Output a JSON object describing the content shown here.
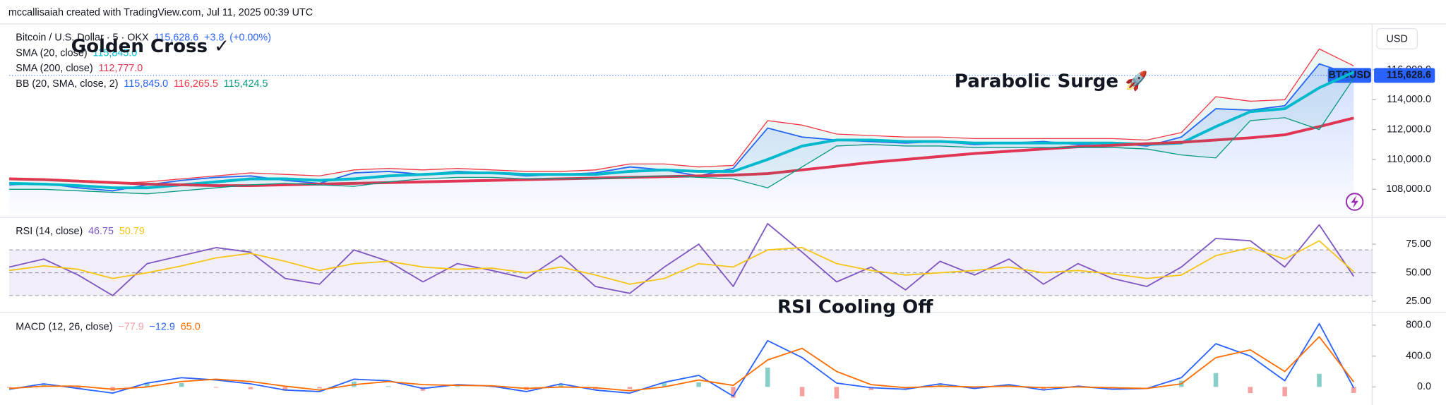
{
  "header": "mccallisaiah created with TradingView.com, Jul 11, 2025 00:39 UTC",
  "chart_data": [
    {
      "type": "line",
      "currency": "USD",
      "symbol": "BTCUSD",
      "ylim": [
        106300,
        118950
      ],
      "yticks": [
        {
          "value": 108000,
          "label": "108,000.0"
        },
        {
          "value": 110000,
          "label": "110,000.0"
        },
        {
          "value": 112000,
          "label": "112,000.0"
        },
        {
          "value": 114000,
          "label": "114,000.0"
        },
        {
          "value": 116000,
          "label": "116,000.0"
        }
      ],
      "grid": false,
      "series": [
        {
          "name": "Bitcoin / U.S. Dollar · 5 · OKX",
          "color": "#2962ff",
          "area": true,
          "last_price_line": true,
          "values": [
            108300,
            108400,
            108100,
            107900,
            108300,
            108600,
            108800,
            108900,
            108600,
            108400,
            109100,
            109200,
            109000,
            109200,
            109100,
            108900,
            109000,
            109100,
            109500,
            109300,
            108900,
            109400,
            112100,
            111500,
            111300,
            111200,
            111100,
            111200,
            111000,
            111100,
            111200,
            111000,
            111100,
            110900,
            111500,
            113400,
            113300,
            113600,
            116400,
            115628.6
          ],
          "legend": [
            {
              "value": 115628.6,
              "label": "115,628.6"
            },
            {
              "value": 3.8,
              "label": "+3.8"
            },
            {
              "value": 0.0,
              "label": "(+0.00%)"
            }
          ]
        },
        {
          "name": "SMA (20, close)",
          "color": "#00bcd4",
          "width": 3,
          "values": [
            108400,
            108350,
            108250,
            108100,
            108100,
            108300,
            108500,
            108700,
            108700,
            108600,
            108700,
            108900,
            109000,
            109100,
            109100,
            109000,
            109000,
            109000,
            109200,
            109300,
            109200,
            109200,
            110000,
            110900,
            111300,
            111300,
            111200,
            111200,
            111100,
            111100,
            111100,
            111100,
            111100,
            111000,
            111100,
            112200,
            113200,
            113400,
            114800,
            115845
          ],
          "legend": [
            {
              "value": 115845.0,
              "label": "115,845.0"
            }
          ]
        },
        {
          "name": "SMA (200, close)",
          "color": "#e03553",
          "width": 3,
          "values": [
            108700,
            108650,
            108550,
            108450,
            108350,
            108300,
            108250,
            108250,
            108300,
            108350,
            108400,
            108450,
            108500,
            108550,
            108600,
            108650,
            108700,
            108750,
            108800,
            108850,
            108900,
            108950,
            109050,
            109300,
            109550,
            109800,
            110000,
            110200,
            110400,
            110550,
            110700,
            110850,
            110950,
            111050,
            111150,
            111300,
            111450,
            111650,
            112200,
            112777
          ],
          "legend": [
            {
              "value": 112777.0,
              "label": "112,777.0"
            }
          ]
        },
        {
          "name": "BB (20, SMA, close, 2)",
          "color": "#2962ff",
          "upper_color": "#f23645",
          "lower_color": "#089981",
          "upper": [
            108700,
            108700,
            108600,
            108400,
            108500,
            108700,
            108900,
            109100,
            109000,
            108900,
            109300,
            109400,
            109300,
            109400,
            109300,
            109200,
            109200,
            109300,
            109700,
            109700,
            109500,
            109600,
            112600,
            112300,
            111700,
            111600,
            111500,
            111500,
            111400,
            111400,
            111400,
            111400,
            111400,
            111300,
            111800,
            114200,
            113900,
            114000,
            117400,
            116265.5
          ],
          "lower": [
            108000,
            108000,
            107900,
            107800,
            107700,
            107900,
            108100,
            108300,
            108400,
            108300,
            108200,
            108500,
            108700,
            108800,
            108800,
            108700,
            108700,
            108700,
            108800,
            108900,
            108800,
            108700,
            108100,
            109500,
            110900,
            111000,
            110900,
            110900,
            110800,
            110800,
            110800,
            110800,
            110800,
            110700,
            110300,
            110100,
            112600,
            112800,
            112000,
            115424.5
          ],
          "legend": [
            {
              "value": 115845.0,
              "label": "115,845.0",
              "color": "#2962ff"
            },
            {
              "value": 116265.5,
              "label": "116,265.5",
              "color": "#f23645"
            },
            {
              "value": 115424.5,
              "label": "115,424.5",
              "color": "#089981"
            }
          ]
        }
      ],
      "annotations": [
        {
          "text": "Golden Cross ✓",
          "color": "#e01b1b"
        },
        {
          "text": "Parabolic Surge 🚀",
          "color": "#1a1ad8"
        }
      ]
    },
    {
      "type": "line",
      "title": "RSI (14, close)",
      "ylim": [
        18.5,
        96.8
      ],
      "yticks": [
        {
          "value": 25,
          "label": "25.00"
        },
        {
          "value": 50,
          "label": "50.00"
        },
        {
          "value": 75,
          "label": "75.00"
        }
      ],
      "bands": [
        70,
        50,
        30
      ],
      "series": [
        {
          "color": "#7e57c2",
          "values": [
            55,
            62,
            48,
            30,
            58,
            65,
            72,
            68,
            45,
            40,
            70,
            60,
            42,
            58,
            52,
            45,
            65,
            38,
            32,
            55,
            75,
            38,
            93,
            68,
            42,
            55,
            35,
            60,
            48,
            62,
            40,
            58,
            45,
            38,
            55,
            80,
            78,
            55,
            92,
            46.75
          ],
          "legend": [
            {
              "value": 46.75,
              "label": "46.75"
            }
          ]
        },
        {
          "color": "#f5c518",
          "values": [
            52,
            56,
            53,
            45,
            50,
            56,
            63,
            67,
            60,
            52,
            58,
            60,
            55,
            53,
            54,
            50,
            55,
            48,
            40,
            45,
            58,
            55,
            70,
            72,
            58,
            52,
            48,
            50,
            52,
            55,
            50,
            52,
            49,
            45,
            48,
            65,
            72,
            62,
            78,
            50.79
          ],
          "legend": [
            {
              "value": 50.79,
              "label": "50.79"
            }
          ]
        }
      ],
      "annotations": [
        {
          "text": "RSI Cooling Off",
          "color": "#8b1a8b"
        }
      ]
    },
    {
      "type": "line",
      "title": "MACD (12, 26, close)",
      "ylim": [
        -240,
        930
      ],
      "yticks": [
        {
          "value": 0,
          "label": "0.0"
        },
        {
          "value": 400,
          "label": "400.0"
        },
        {
          "value": 800,
          "label": "800.0"
        }
      ],
      "series": [
        {
          "style": "histogram",
          "color": "#26a69a",
          "negative_color": "#ef5350",
          "values": [
            -10,
            30,
            -30,
            -50,
            50,
            50,
            -10,
            -30,
            -50,
            -20,
            70,
            10,
            -50,
            10,
            -5,
            -40,
            40,
            -30,
            -30,
            60,
            60,
            -140,
            250,
            -120,
            -150,
            -40,
            -20,
            30,
            -20,
            20,
            -30,
            10,
            -20,
            0,
            80,
            180,
            -80,
            -120,
            170,
            -77.9
          ],
          "legend": [
            {
              "value": -77.9,
              "label": "−77.9",
              "color": "#f7a1a8"
            }
          ]
        },
        {
          "color": "#2962ff",
          "values": [
            -30,
            40,
            -20,
            -80,
            50,
            120,
            90,
            40,
            -40,
            -60,
            100,
            80,
            -20,
            30,
            10,
            -60,
            40,
            -40,
            -80,
            60,
            150,
            -120,
            600,
            380,
            50,
            -10,
            -30,
            40,
            -20,
            30,
            -40,
            10,
            -30,
            -20,
            120,
            560,
            400,
            80,
            820,
            -12.9
          ],
          "legend": [
            {
              "value": -12.9,
              "label": "−12.9"
            }
          ]
        },
        {
          "color": "#ff6d00",
          "values": [
            -20,
            10,
            10,
            -30,
            0,
            70,
            100,
            70,
            10,
            -40,
            30,
            70,
            30,
            20,
            15,
            -20,
            0,
            -10,
            -50,
            0,
            90,
            20,
            350,
            500,
            200,
            30,
            -10,
            10,
            0,
            10,
            -10,
            0,
            -10,
            -20,
            40,
            380,
            480,
            200,
            650,
            65.0
          ],
          "legend": [
            {
              "value": 65.0,
              "label": "65.0"
            }
          ]
        }
      ]
    }
  ]
}
